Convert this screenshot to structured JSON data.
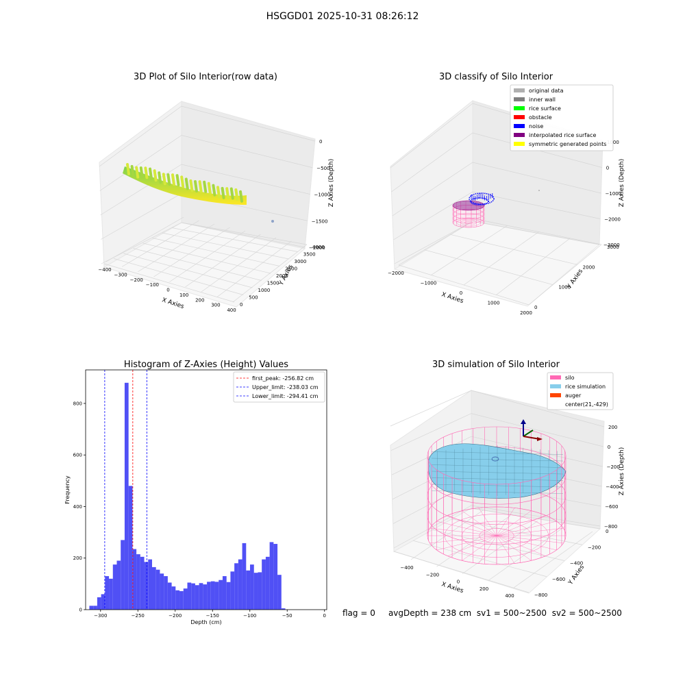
{
  "figure": {
    "suptitle": "HSGGD01 2025-10-31 08:26:12",
    "footer": {
      "flag": "flag = 0",
      "avg_depth": "avgDepth = 238 cm",
      "sv1": "sv1 = 500~2500",
      "sv2": "sv2 = 500~2500"
    }
  },
  "chart_data": [
    {
      "type": "scatter",
      "panel": "3d",
      "title": "3D Plot of Silo Interior(row data)",
      "xlabel": "X Axies",
      "ylabel": "Y Axies",
      "zlabel": "Z Axies (Depth)",
      "x_ticks": [
        "−400",
        "−300",
        "−200",
        "−100",
        "0",
        "100",
        "200",
        "300",
        "400"
      ],
      "y_ticks": [
        "0",
        "500",
        "1000",
        "1500",
        "2000",
        "2500",
        "3000",
        "3500",
        "4000"
      ],
      "z_ticks": [
        "−2000",
        "−1500",
        "−1000",
        "−500",
        "0"
      ],
      "xlim": [
        -400,
        400
      ],
      "ylim": [
        0,
        4000
      ],
      "zlim": [
        -2000,
        0
      ],
      "colormap": [
        "#7fd34e",
        "#fde725"
      ],
      "outlier_color": "#8ea3c8"
    },
    {
      "type": "scatter",
      "panel": "3d",
      "title": "3D classify of Silo Interior",
      "xlabel": "X Axies",
      "ylabel": "Y Axies",
      "zlabel": "Z Axies (Depth)",
      "x_ticks": [
        "−2000",
        "−1000",
        "0",
        "1000",
        "2000"
      ],
      "y_ticks": [
        "0",
        "1000",
        "2000",
        "3000"
      ],
      "z_ticks": [
        "−3000",
        "−2000",
        "−1000",
        "0",
        "1000"
      ],
      "xlim": [
        -2000,
        2000
      ],
      "ylim": [
        0,
        3000
      ],
      "zlim": [
        -3000,
        1000
      ],
      "legend_position": "top-right",
      "legend": [
        {
          "label": "original data",
          "color": "#b0b0b0"
        },
        {
          "label": "inner wall",
          "color": "#808080"
        },
        {
          "label": "rice surface",
          "color": "#00ff00"
        },
        {
          "label": "obstacle",
          "color": "#ff0000"
        },
        {
          "label": "noise",
          "color": "#0000ff"
        },
        {
          "label": "interpolated rice surface",
          "color": "#800080"
        },
        {
          "label": "symmetric generated points",
          "color": "#ffff00"
        }
      ]
    },
    {
      "type": "bar",
      "title": "Histogram of Z-Axies (Height) Values",
      "xlabel": "Depth (cm)",
      "ylabel": "Frequency",
      "xlim": [
        -320,
        3
      ],
      "ylim": [
        0,
        930
      ],
      "x_ticks": [
        -300,
        -250,
        -200,
        -150,
        -100,
        -50,
        0
      ],
      "x_tick_labels": [
        "−300",
        "−250",
        "−200",
        "−150",
        "−100",
        "−50",
        "0"
      ],
      "y_ticks": [
        0,
        200,
        400,
        600,
        800
      ],
      "bar_color": "#5050f5",
      "bins_start": -315,
      "bin_width": 5.25,
      "values": [
        15,
        15,
        48,
        60,
        130,
        120,
        175,
        190,
        270,
        880,
        480,
        235,
        215,
        205,
        185,
        195,
        165,
        155,
        140,
        130,
        105,
        90,
        75,
        72,
        82,
        105,
        102,
        95,
        103,
        98,
        108,
        110,
        108,
        115,
        130,
        107,
        148,
        180,
        195,
        258,
        152,
        175,
        143,
        145,
        195,
        205,
        262,
        255,
        135,
        5
      ],
      "vlines": [
        {
          "label": "first_peak: -256.82 cm",
          "x": -256.82,
          "color": "#ff0000"
        },
        {
          "label": "Upper_limit: -238.03 cm",
          "x": -238.03,
          "color": "#0000ff"
        },
        {
          "label": "Lower_limit: -294.41 cm",
          "x": -294.41,
          "color": "#0000ff"
        }
      ],
      "legend_position": "top-right"
    },
    {
      "type": "surface",
      "panel": "3d",
      "title": "3D simulation of Silo Interior",
      "xlabel": "X Axies",
      "ylabel": "Y Axies",
      "zlabel": "Z Axies (Depth)",
      "x_ticks": [
        "−400",
        "−200",
        "0",
        "200",
        "400"
      ],
      "y_ticks": [
        "−800",
        "−600",
        "−400",
        "−200",
        "0"
      ],
      "z_ticks": [
        "−800",
        "−600",
        "−400",
        "−200",
        "0",
        "200"
      ],
      "legend_position": "top-right",
      "legend": [
        {
          "label": "silo",
          "color": "#ff69b4"
        },
        {
          "label": "rice simulation",
          "color": "#87ceeb"
        },
        {
          "label": "auger",
          "color": "#ff4500"
        },
        {
          "label": "center(21,-429)",
          "color": ""
        }
      ]
    }
  ]
}
